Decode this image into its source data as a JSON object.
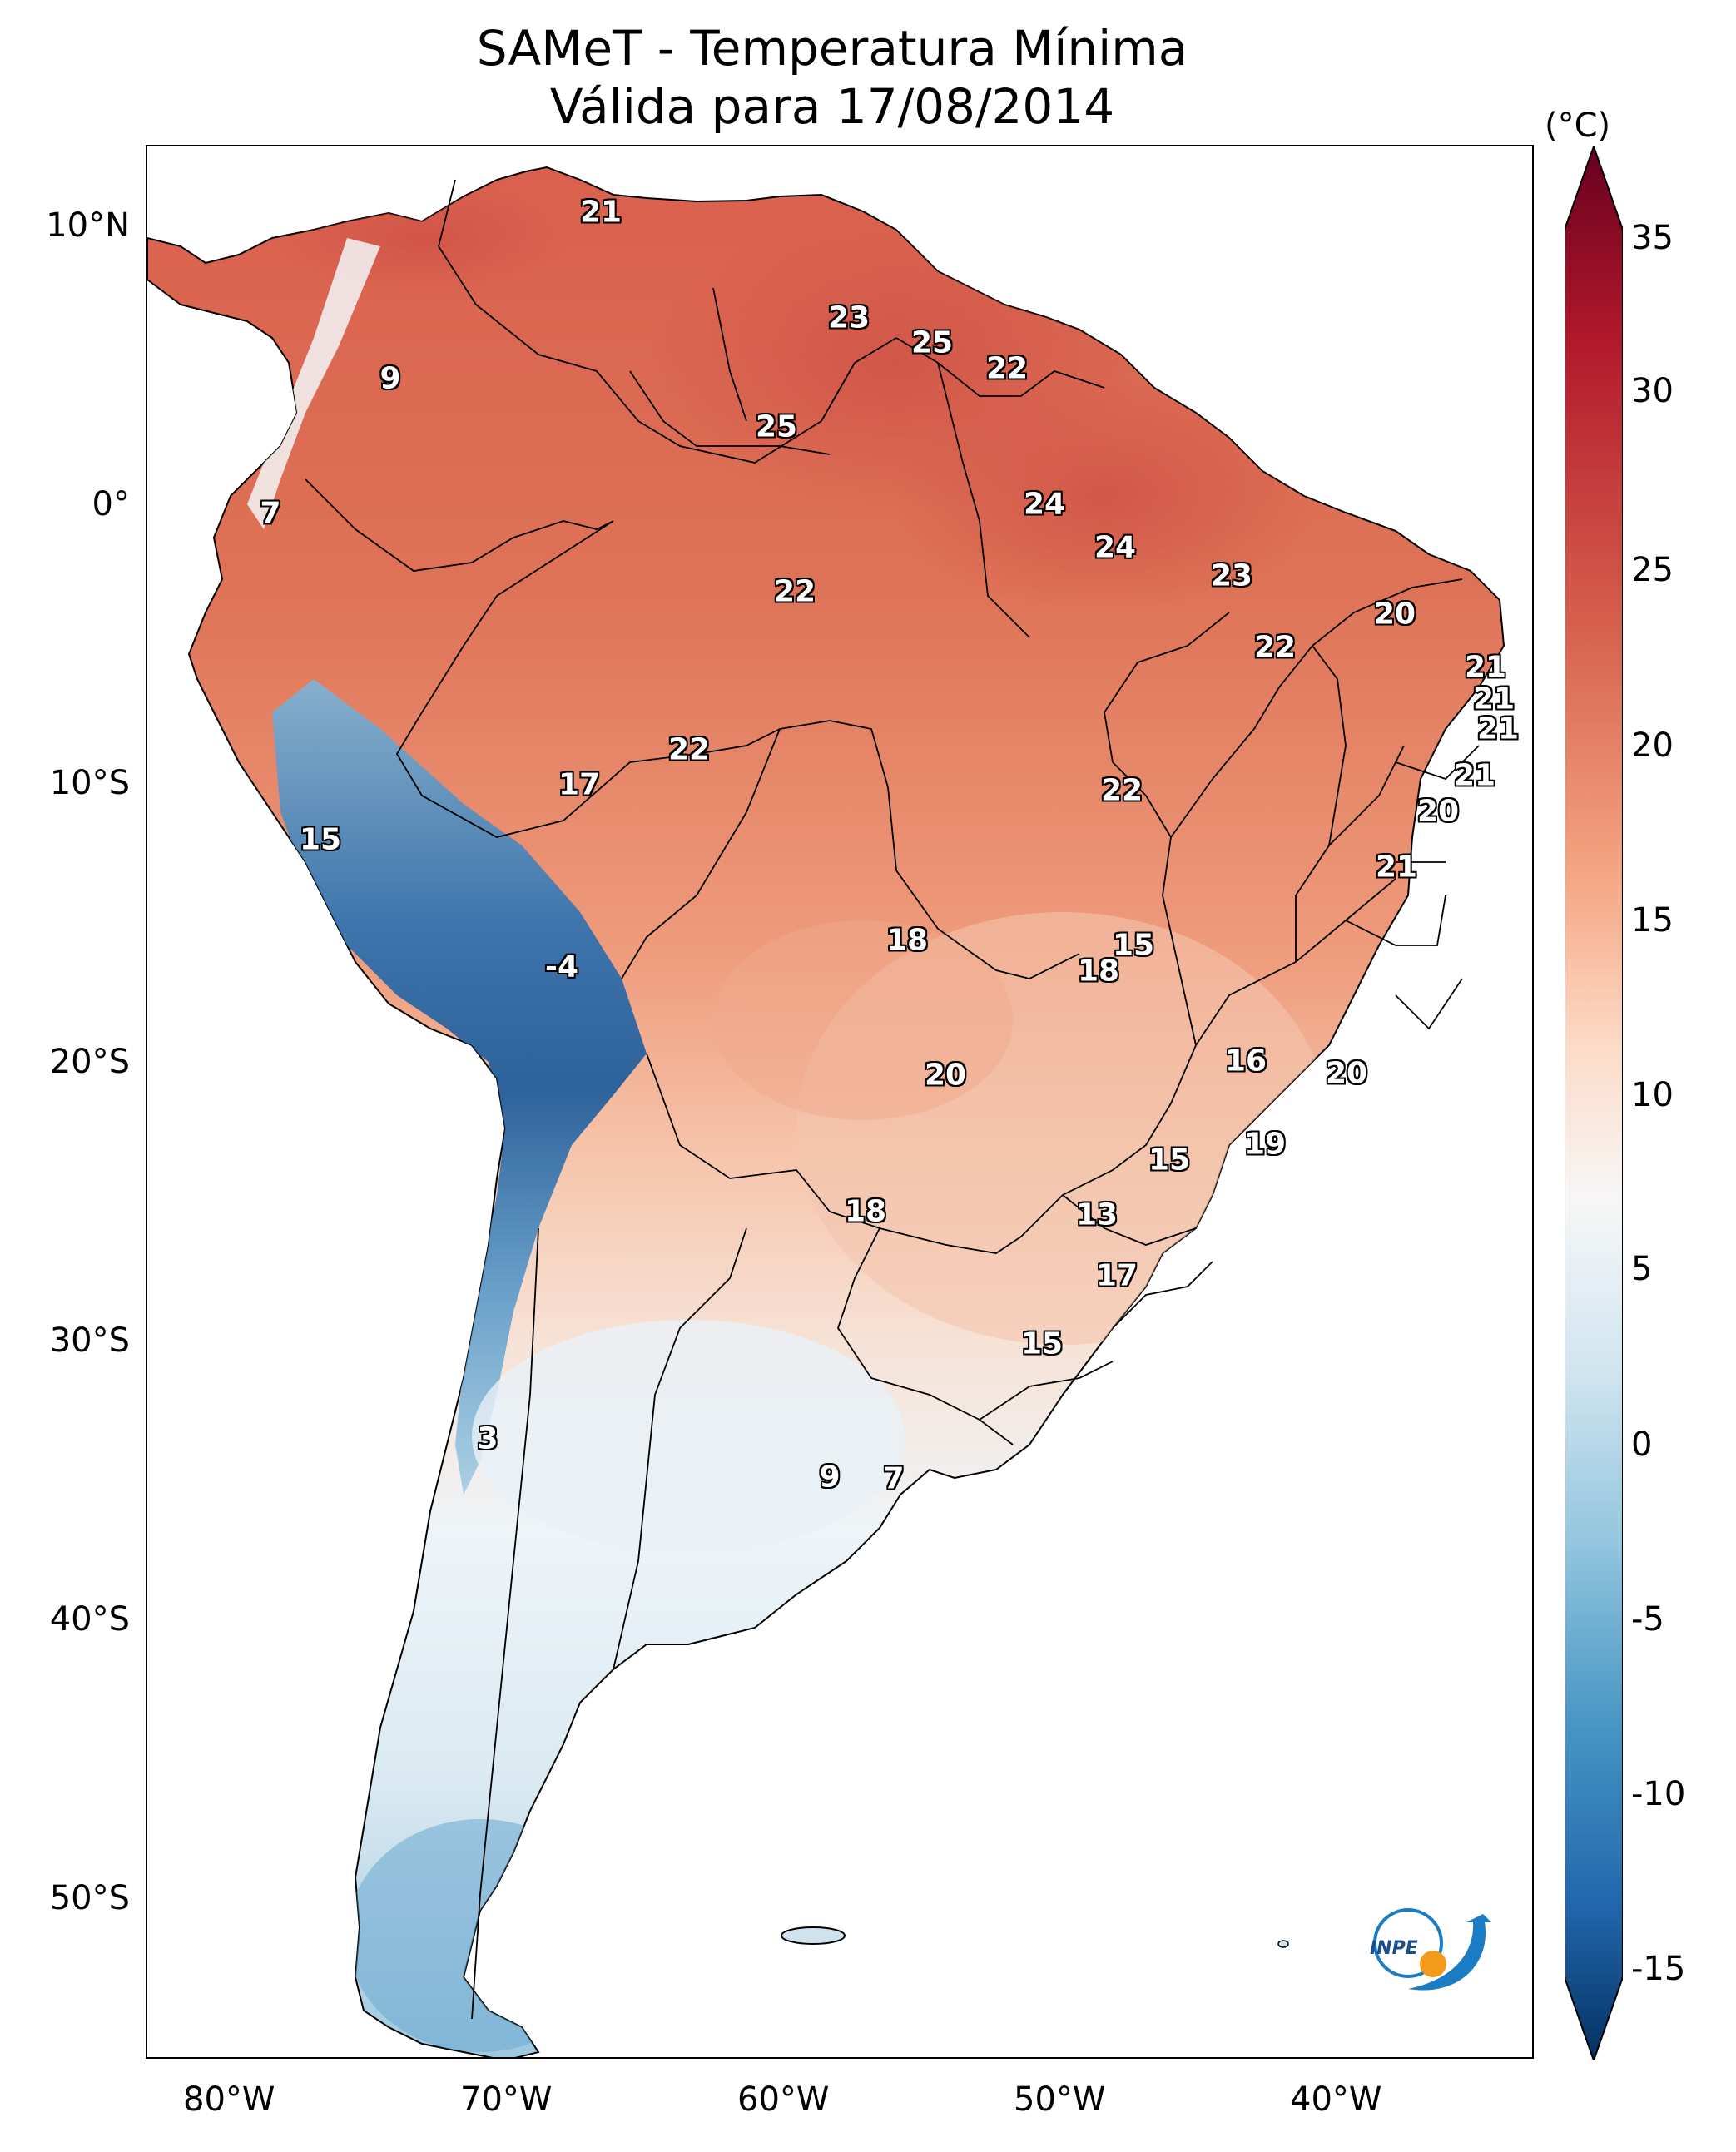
{
  "title": {
    "line1": "SAMeT - Temperatura Mínima",
    "line2": "Válida para 17/08/2014"
  },
  "map": {
    "lat_labels": [
      "10°N",
      "0°",
      "10°S",
      "20°S",
      "30°S",
      "40°S",
      "50°S"
    ],
    "lon_labels": [
      "80°W",
      "70°W",
      "60°W",
      "50°W",
      "40°W"
    ],
    "region": "South America"
  },
  "colorbar": {
    "unit": "(°C)",
    "ticks": [
      "35",
      "30",
      "25",
      "20",
      "15",
      "10",
      "5",
      "0",
      "-5",
      "-10",
      "-15"
    ],
    "range": [
      -15,
      35
    ],
    "colormap": "RdBu_r",
    "colors": {
      "max": "#67001f",
      "high": "#d6604d",
      "mid": "#f7f7f7",
      "low": "#4393c3",
      "min": "#053061"
    }
  },
  "station_values": [
    "21",
    "23",
    "25",
    "22",
    "9",
    "25",
    "7",
    "24",
    "24",
    "23",
    "22",
    "20",
    "22",
    "21",
    "21",
    "21",
    "22",
    "17",
    "22",
    "21",
    "15",
    "20",
    "21",
    "18",
    "15",
    "18",
    "-4",
    "16",
    "20",
    "20",
    "15",
    "19",
    "18",
    "13",
    "17",
    "15",
    "3",
    "9",
    "7"
  ],
  "logo": {
    "text": "INPE"
  }
}
